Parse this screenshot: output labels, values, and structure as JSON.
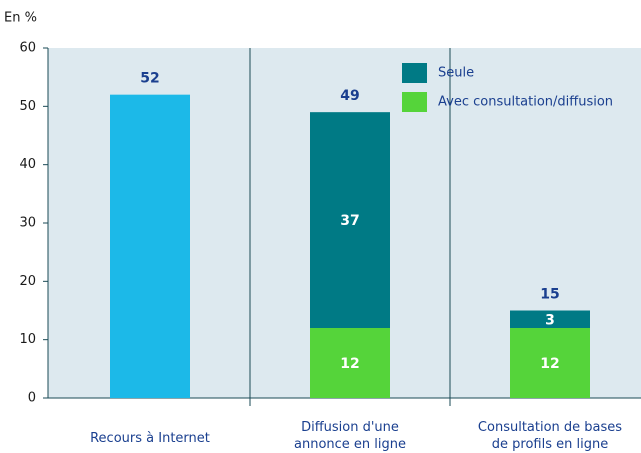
{
  "chart_data": {
    "type": "stacked_bar",
    "y_label": "En %",
    "categories": [
      [
        "Recours à Internet"
      ],
      [
        "Diffusion d'une",
        "annonce en ligne"
      ],
      [
        "Consultation de bases",
        "de profils en ligne"
      ]
    ],
    "series": [
      {
        "color": "#1cb9e8",
        "values": [
          52,
          null,
          null
        ]
      },
      {
        "name": "Avec consultation/diffusion",
        "color": "#55d43a",
        "values": [
          null,
          12,
          12
        ]
      },
      {
        "name": "Seule",
        "color": "#007a85",
        "values": [
          null,
          37,
          3
        ]
      }
    ],
    "totals": [
      52,
      49,
      15
    ],
    "ylim": [
      0,
      60
    ],
    "yticks": [
      0,
      10,
      20,
      30,
      40,
      50,
      60
    ],
    "background": "#dde9ef",
    "label_color": "#1a3f8f",
    "legend": "top-right"
  }
}
